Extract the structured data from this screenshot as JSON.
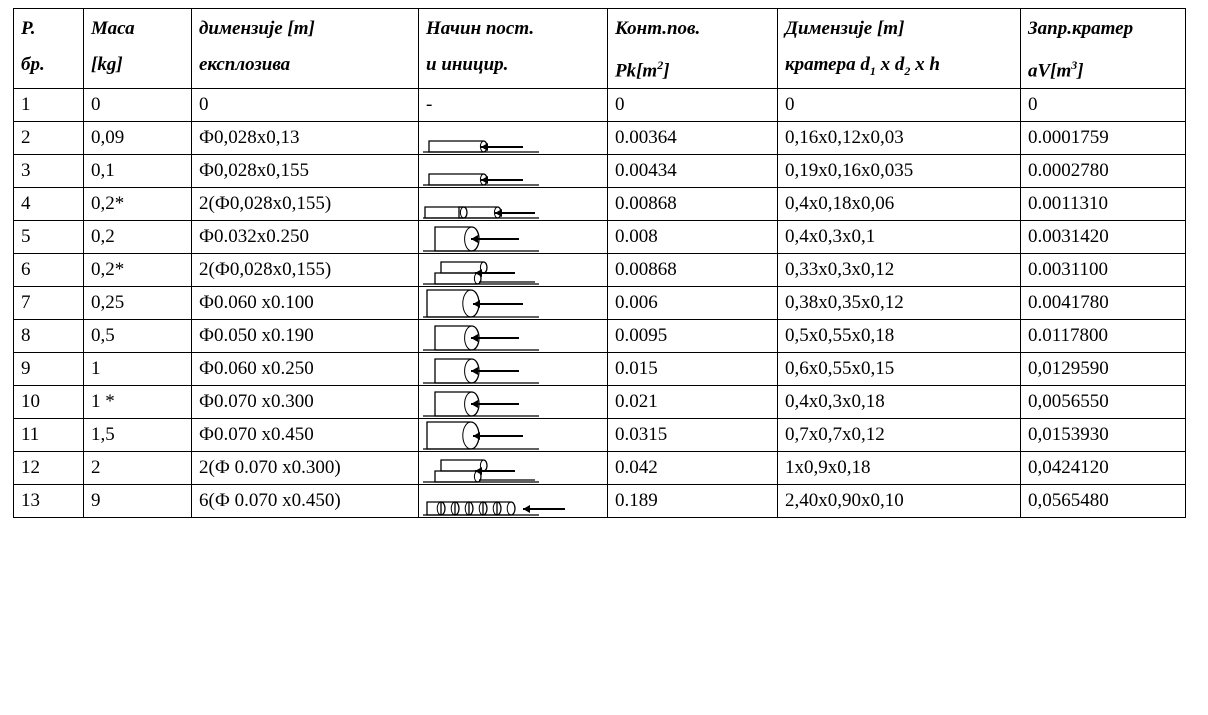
{
  "headers": {
    "line1": [
      "Р.",
      "Маса",
      "димензије [m]",
      "Начин пост.",
      "Конт.пов.",
      "Димензије [m]",
      "Запр.кратер"
    ],
    "line2": {
      "c0": "бр.",
      "c1": "[kg]",
      "c2": "експлозива",
      "c3": "и иницир.",
      "c4_a": "Pk[m",
      "c4_sup": "2",
      "c4_b": "]",
      "c5_a": "кратера d",
      "c5_sub1": "1",
      "c5_b": " x d",
      "c5_sub2": "2",
      "c5_c": " x h",
      "c6_a": "aV[m",
      "c6_sup": "3",
      "c6_b": "]"
    }
  },
  "rows": [
    {
      "n": "1",
      "mass": "0",
      "dim": "0",
      "method": "-",
      "area": "0",
      "crater": "0",
      "vol": "0"
    },
    {
      "n": "2",
      "mass": "0,09",
      "dim": "Ф0,028x0,13",
      "method": "single-small",
      "area": "0.00364",
      "crater": "0,16x0,12x0,03",
      "vol": "0.0001759"
    },
    {
      "n": "3",
      "mass": "0,1",
      "dim": "Ф0,028x0,155",
      "method": "single-small",
      "area": "0.00434",
      "crater": "0,19x0,16x0,035",
      "vol": "0.0002780"
    },
    {
      "n": "4",
      "mass": "0,2*",
      "dim": "2(Ф0,028x0,155)",
      "method": "double-inline",
      "area": "0.00868",
      "crater": "0,4x0,18x0,06",
      "vol": "0.0011310"
    },
    {
      "n": "5",
      "mass": "0,2",
      "dim": "Ф0.032x0.250",
      "method": "single-large",
      "area": "0.008",
      "crater": "0,4x0,3x0,1",
      "vol": "0.0031420"
    },
    {
      "n": "6",
      "mass": "0,2*",
      "dim": "2(Ф0,028x0,155)",
      "method": "double-stacked",
      "area": "0.00868",
      "crater": "0,33x0,3x0,12",
      "vol": "0.0031100"
    },
    {
      "n": "7",
      "mass": "0,25",
      "dim": "Ф0.060 x0.100",
      "method": "single-short",
      "area": "0.006",
      "crater": "0,38x0,35x0,12",
      "vol": "0.0041780"
    },
    {
      "n": "8",
      "mass": "0,5",
      "dim": "Ф0.050 x0.190",
      "method": "single-large",
      "area": "0.0095",
      "crater": "0,5x0,55x0,18",
      "vol": "0.0117800"
    },
    {
      "n": "9",
      "mass": "1",
      "dim": "Ф0.060 x0.250",
      "method": "single-large",
      "area": "0.015",
      "crater": "0,6x0,55x0,15",
      "vol": "0,0129590"
    },
    {
      "n": "10",
      "mass": "1 *",
      "dim": "Ф0.070 x0.300",
      "method": "single-large",
      "area": "0.021",
      "crater": "0,4x0,3x0,18",
      "vol": "0,0056550"
    },
    {
      "n": "11",
      "mass": "1,5",
      "dim": "Ф0.070 x0.450",
      "method": "single-short",
      "area": "0.0315",
      "crater": "0,7x0,7x0,12",
      "vol": "0,0153930"
    },
    {
      "n": "12",
      "mass": "2",
      "dim": "2(Ф 0.070 x0.300)",
      "method": "double-stacked",
      "area": "0.042",
      "crater": "1x0,9x0,18",
      "vol": "0,0424120"
    },
    {
      "n": "13",
      "mass": "9",
      "dim": "6(Ф 0.070 x0.450)",
      "method": "six-inline",
      "area": "0.189",
      "crater": "2,40x0,90x0,10",
      "vol": "0,0565480"
    }
  ]
}
